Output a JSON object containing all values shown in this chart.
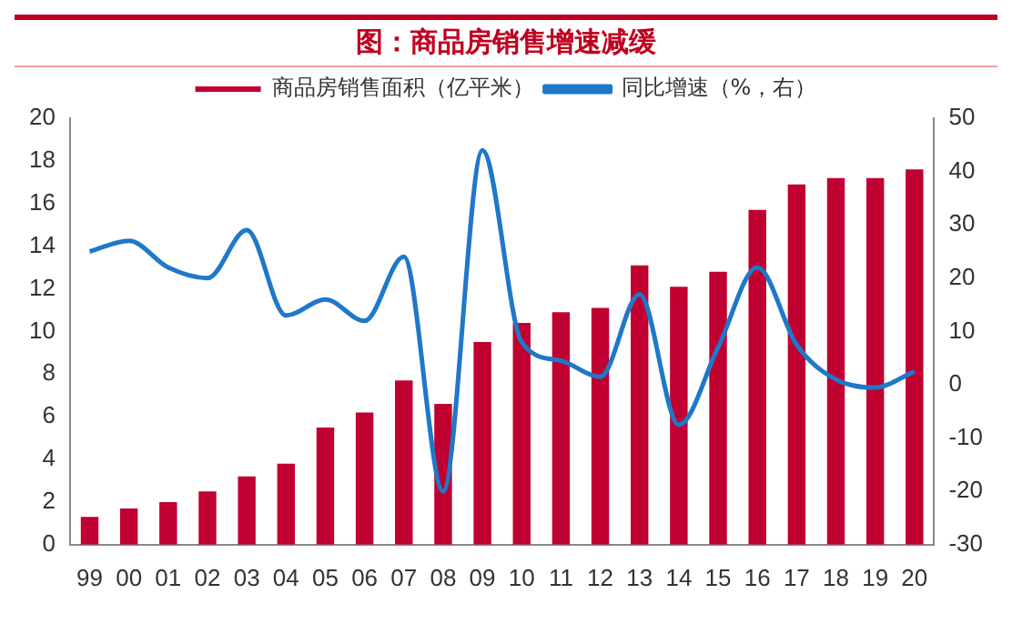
{
  "chart_data": {
    "type": "bar",
    "title": "图：商品房销售增速减缓",
    "categories": [
      "99",
      "00",
      "01",
      "02",
      "03",
      "04",
      "05",
      "06",
      "07",
      "08",
      "09",
      "10",
      "11",
      "12",
      "13",
      "14",
      "15",
      "16",
      "17",
      "18",
      "19",
      "20"
    ],
    "series": [
      {
        "name": "商品房销售面积（亿平米）",
        "color": "#c00030",
        "values": [
          1.3,
          1.7,
          2.0,
          2.5,
          3.2,
          3.8,
          5.5,
          6.2,
          7.7,
          6.6,
          9.5,
          10.4,
          10.9,
          11.1,
          13.1,
          12.1,
          12.8,
          15.7,
          16.9,
          17.2,
          17.2,
          17.6
        ]
      },
      {
        "name": "同比增速（%，右）",
        "type": "line",
        "axis": "y2",
        "color": "#1f78c8",
        "values": [
          25,
          27,
          22,
          20,
          29,
          13,
          16,
          12,
          24,
          -20,
          44,
          8,
          4.5,
          1.5,
          17,
          -7.5,
          7,
          22,
          7.5,
          1,
          -0.5,
          2.5
        ]
      }
    ],
    "ylim": [
      0,
      20
    ],
    "yticks": [
      0,
      2,
      4,
      6,
      8,
      10,
      12,
      14,
      16,
      18,
      20
    ],
    "y2lim": [
      -30,
      50
    ],
    "y2ticks": [
      -30,
      -20,
      -10,
      0,
      10,
      20,
      30,
      40,
      50
    ],
    "grid": false,
    "legend": "top",
    "marker": "none"
  }
}
